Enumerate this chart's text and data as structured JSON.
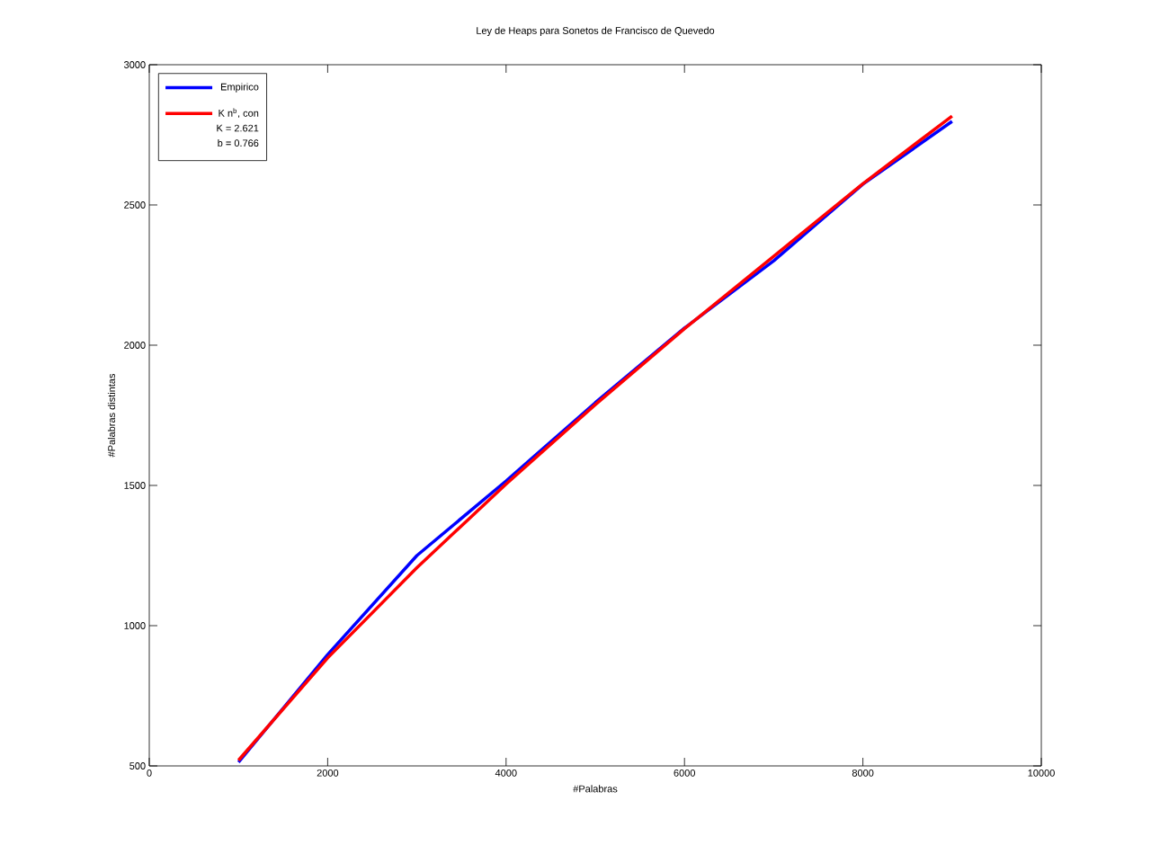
{
  "chart_data": {
    "type": "line",
    "title": "Ley de Heaps para Sonetos de Francisco de Quevedo",
    "xlabel": "#Palabras",
    "ylabel": "#Palabras distintas",
    "x": [
      1000,
      2000,
      3000,
      4000,
      5000,
      6000,
      7000,
      8000,
      9000
    ],
    "series": [
      {
        "name": "Empirico",
        "color": "#0000ff",
        "values": [
          513,
          897,
          1250,
          1516,
          1795,
          2061,
          2301,
          2574,
          2798
        ]
      },
      {
        "name": "K n$^{b}$, con",
        "color": "#ff0000",
        "values": [
          520,
          885,
          1207,
          1505,
          1788,
          2059,
          2317,
          2576,
          2817
        ]
      }
    ],
    "annotations": [
      "K = 2.621",
      "b = 0.766"
    ],
    "xlim": [
      0,
      10000
    ],
    "ylim": [
      500,
      3000
    ],
    "xticks": [
      0,
      2000,
      4000,
      6000,
      8000,
      10000
    ],
    "yticks": [
      500,
      1000,
      1500,
      2000,
      2500,
      3000
    ],
    "grid": false,
    "legend": "top left",
    "marker": "none",
    "line_style": "solid"
  }
}
